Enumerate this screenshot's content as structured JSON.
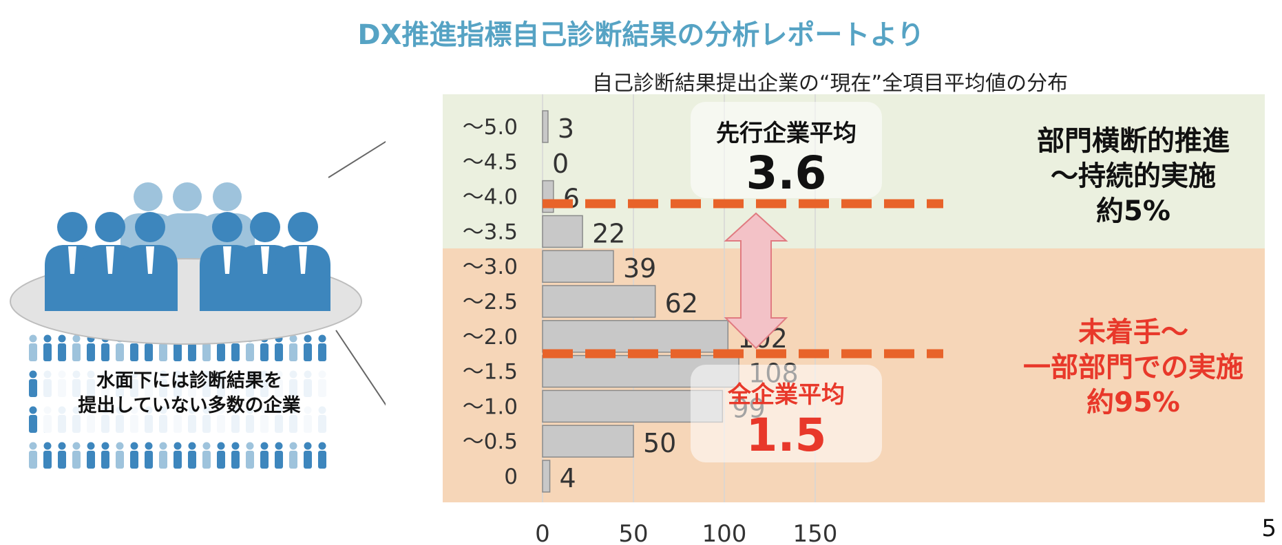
{
  "header": {
    "title": "DX推進指標自己診断結果の分析レポートより",
    "subtitle": "自己診断結果提出企業の“現在”全項目平均値の分布"
  },
  "chart_data": {
    "type": "bar",
    "orientation": "horizontal",
    "categories": [
      "～5.0",
      "～4.5",
      "～4.0",
      "～3.5",
      "～3.0",
      "～2.5",
      "～2.0",
      "～1.5",
      "～1.0",
      "～0.5",
      "0"
    ],
    "values": [
      3,
      0,
      6,
      22,
      39,
      62,
      102,
      108,
      99,
      50,
      4
    ],
    "xticks": [
      "0",
      "50",
      "100",
      "150"
    ],
    "xlim": [
      0,
      200
    ],
    "grid": true,
    "bar_color": "#c8c8c8",
    "reference_lines": [
      {
        "label": "先行企業平均",
        "value": "3.6"
      },
      {
        "label": "全企業平均",
        "value": "1.5"
      }
    ],
    "line_color": "#e8632a",
    "arrow_color": "#f3c2c7"
  },
  "callouts": {
    "leading": {
      "label": "先行企業平均",
      "value": "3.6"
    },
    "all": {
      "label": "全企業平均",
      "value": "1.5"
    }
  },
  "zones": {
    "upper": {
      "line1": "部門横断的推進",
      "line2": "～持続的実施",
      "line3": "約5%",
      "color": "#111111"
    },
    "lower": {
      "line1": "未着手～",
      "line2": "一部部門での実施",
      "line3": "約95%",
      "color": "#e8382a"
    }
  },
  "illustration": {
    "caption_line1": "水面下には診断結果を",
    "caption_line2": "提出していない多数の企業",
    "people_color": "#3d86bd",
    "people_light_color": "#9ec3dc"
  },
  "page_number": "5",
  "colors": {
    "title": "#56a3c4",
    "upper_band": "#ebf0df",
    "lower_band": "#f6d6b8"
  }
}
